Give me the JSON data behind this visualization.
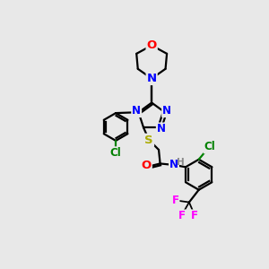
{
  "background_color": "#e8e8e8",
  "bond_color": "#000000",
  "atom_colors": {
    "N": "#0000ff",
    "O": "#ff0000",
    "S": "#aaaa00",
    "Cl": "#008000",
    "F": "#ff00ff",
    "H": "#888888"
  },
  "line_width": 1.6,
  "font_size": 8.5,
  "fig_size": [
    3.0,
    3.0
  ],
  "dpi": 100
}
